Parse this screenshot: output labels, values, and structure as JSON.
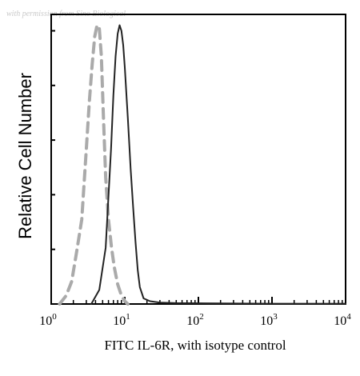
{
  "watermark": "with permission from Sino Biological",
  "chart_data": {
    "type": "line",
    "title": "",
    "xlabel": "FITC IL-6R, with isotype control",
    "ylabel": "Relative Cell Number",
    "xscale": "log",
    "xlim": [
      1,
      10000
    ],
    "ylim": [
      0,
      1
    ],
    "grid": false,
    "x_ticks": [
      {
        "value": 1,
        "base": "10",
        "exp": "0"
      },
      {
        "value": 10,
        "base": "10",
        "exp": "1"
      },
      {
        "value": 100,
        "base": "10",
        "exp": "2"
      },
      {
        "value": 1000,
        "base": "10",
        "exp": "3"
      },
      {
        "value": 10000,
        "base": "10",
        "exp": "4"
      }
    ],
    "series": [
      {
        "name": "",
        "color": "#aaaaaa",
        "style": "dashed",
        "x": [
          1.3,
          1.6,
          1.9,
          2.2,
          2.6,
          3.0,
          3.3,
          3.6,
          3.9,
          4.2,
          4.5,
          4.8,
          5.1,
          5.5,
          6.0,
          6.6,
          7.2,
          8.0,
          9.0,
          10.0,
          11.0
        ],
        "y": [
          0.0,
          0.03,
          0.08,
          0.18,
          0.3,
          0.55,
          0.72,
          0.85,
          0.95,
          0.99,
          0.98,
          0.88,
          0.68,
          0.45,
          0.3,
          0.2,
          0.13,
          0.07,
          0.03,
          0.01,
          0.0
        ]
      },
      {
        "name": "",
        "color": "#222222",
        "style": "solid",
        "x": [
          3.5,
          4.5,
          5.5,
          6.5,
          7.0,
          7.5,
          8.0,
          8.5,
          9.0,
          9.5,
          10.0,
          11.0,
          12.0,
          13.0,
          14.0,
          15.0,
          16.0,
          18.0,
          22.0,
          30.0,
          50.0,
          200.0,
          1000.0,
          10000.0
        ],
        "y": [
          0.0,
          0.05,
          0.2,
          0.55,
          0.74,
          0.88,
          0.96,
          0.99,
          0.97,
          0.92,
          0.84,
          0.66,
          0.48,
          0.34,
          0.22,
          0.12,
          0.06,
          0.02,
          0.01,
          0.005,
          0.003,
          0.002,
          0.001,
          0.001
        ]
      }
    ]
  }
}
